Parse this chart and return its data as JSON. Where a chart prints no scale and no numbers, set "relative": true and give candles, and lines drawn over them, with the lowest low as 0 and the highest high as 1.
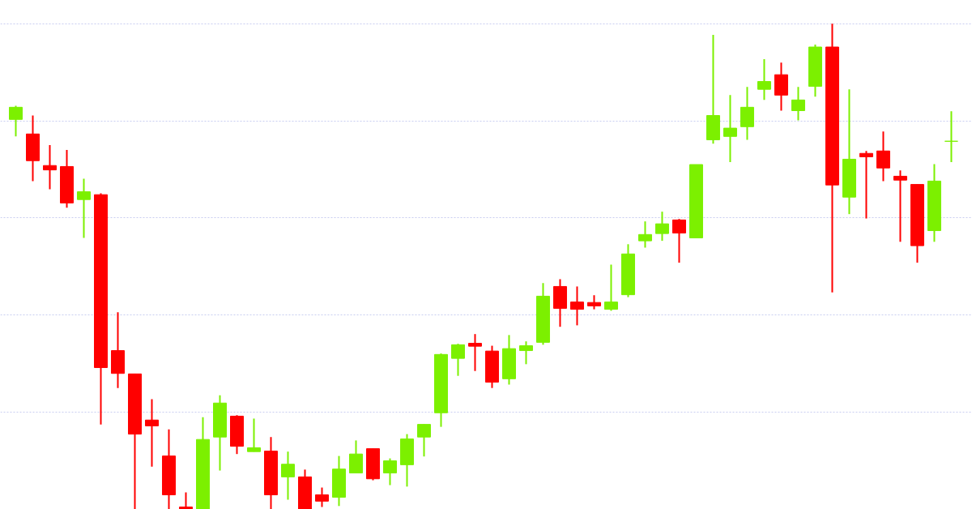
{
  "chart_data": {
    "type": "candlestick",
    "relative": true,
    "grid": "y",
    "tick_labels": false,
    "categories": [
      null,
      null,
      null,
      null,
      null,
      null,
      null,
      null,
      null,
      null,
      null,
      null,
      null,
      null,
      null,
      null,
      null,
      null,
      null,
      null,
      null,
      null,
      null,
      null,
      null,
      null,
      null,
      null,
      null,
      null,
      null,
      null,
      null,
      null,
      null,
      null,
      null,
      null,
      null,
      null,
      null,
      null,
      null,
      null,
      null,
      null,
      null,
      null,
      null,
      null,
      null,
      null,
      null,
      null,
      null,
      null
    ],
    "colors": [
      "#7cf000",
      "#ff0000",
      "#ff0000",
      "#ff0000",
      "#7cf000",
      "#ff0000",
      "#ff0000",
      "#ff0000",
      "#ff0000",
      "#ff0000",
      "#ff0000",
      "#7cf000",
      "#7cf000",
      "#ff0000",
      "#7cf000",
      "#ff0000",
      "#7cf000",
      "#ff0000",
      "#ff0000",
      "#7cf000",
      "#7cf000",
      "#ff0000",
      "#7cf000",
      "#7cf000",
      "#7cf000",
      "#7cf000",
      "#7cf000",
      "#ff0000",
      "#ff0000",
      "#7cf000",
      "#7cf000",
      "#7cf000",
      "#ff0000",
      "#ff0000",
      "#ff0000",
      "#7cf000",
      "#7cf000",
      "#7cf000",
      "#7cf000",
      "#ff0000",
      "#7cf000",
      "#7cf000",
      "#7cf000",
      "#7cf000",
      "#7cf000",
      "#ff0000",
      "#7cf000",
      "#7cf000",
      "#ff0000",
      "#7cf000",
      "#ff0000",
      "#ff0000",
      "#ff0000",
      "#ff0000",
      "#7cf000",
      "#7cf000"
    ],
    "ohlc": [
      [
        0.803,
        0.831,
        0.768,
        0.828
      ],
      [
        0.773,
        0.811,
        0.676,
        0.718
      ],
      [
        0.708,
        0.75,
        0.659,
        0.699
      ],
      [
        0.706,
        0.74,
        0.621,
        0.631
      ],
      [
        0.638,
        0.681,
        0.559,
        0.654
      ],
      [
        0.648,
        0.651,
        0.175,
        0.292
      ],
      [
        0.327,
        0.406,
        0.25,
        0.28
      ],
      [
        0.279,
        0.279,
        0,
        0.155
      ],
      [
        0.184,
        0.227,
        0.088,
        0.172
      ],
      [
        0.11,
        0.165,
        0,
        0.03
      ],
      [
        0.005,
        0.035,
        0,
        0
      ],
      [
        0,
        0.19,
        0,
        0.144
      ],
      [
        0.149,
        0.235,
        0.08,
        0.219
      ],
      [
        0.192,
        0.194,
        0.114,
        0.13
      ],
      [
        0.119,
        0.187,
        0.119,
        0.127
      ],
      [
        0.12,
        0.149,
        0,
        0.03
      ],
      [
        0.067,
        0.119,
        0.02,
        0.093
      ],
      [
        0.067,
        0.082,
        0,
        0
      ],
      [
        0.03,
        0.045,
        0.005,
        0.017
      ],
      [
        0.025,
        0.11,
        0.007,
        0.083
      ],
      [
        0.075,
        0.142,
        0.075,
        0.114
      ],
      [
        0.125,
        0.125,
        0.06,
        0.063
      ],
      [
        0.075,
        0.105,
        0.05,
        0.1
      ],
      [
        0.092,
        0.155,
        0.047,
        0.145
      ],
      [
        0.149,
        0.175,
        0.109,
        0.175
      ],
      [
        0.199,
        0.321,
        0.17,
        0.319
      ],
      [
        0.311,
        0.341,
        0.275,
        0.339
      ],
      [
        0.342,
        0.361,
        0.285,
        0.336
      ],
      [
        0.326,
        0.337,
        0.25,
        0.262
      ],
      [
        0.269,
        0.359,
        0.257,
        0.331
      ],
      [
        0.327,
        0.346,
        0.299,
        0.337
      ],
      [
        0.344,
        0.466,
        0.339,
        0.439
      ],
      [
        0.459,
        0.474,
        0.376,
        0.414
      ],
      [
        0.427,
        0.459,
        0.379,
        0.412
      ],
      [
        0.426,
        0.441,
        0.412,
        0.419
      ],
      [
        0.412,
        0.504,
        0.409,
        0.427
      ],
      [
        0.442,
        0.546,
        0.437,
        0.526
      ],
      [
        0.553,
        0.593,
        0.539,
        0.566
      ],
      [
        0.568,
        0.613,
        0.553,
        0.588
      ],
      [
        0.596,
        0.598,
        0.508,
        0.569
      ],
      [
        0.559,
        0.71,
        0.559,
        0.71
      ],
      [
        0.761,
        0.977,
        0.753,
        0.811
      ],
      [
        0.768,
        0.853,
        0.715,
        0.785
      ],
      [
        0.788,
        0.87,
        0.761,
        0.828
      ],
      [
        0.865,
        0.927,
        0.843,
        0.881
      ],
      [
        0.895,
        0.92,
        0.821,
        0.853
      ],
      [
        0.821,
        0.87,
        0.801,
        0.843
      ],
      [
        0.871,
        0.957,
        0.85,
        0.952
      ],
      [
        0.952,
        1,
        0.447,
        0.668
      ],
      [
        0.643,
        0.865,
        0.608,
        0.721
      ],
      [
        0.733,
        0.738,
        0.599,
        0.726
      ],
      [
        0.738,
        0.778,
        0.676,
        0.703
      ],
      [
        0.686,
        0.698,
        0.551,
        0.678
      ],
      [
        0.669,
        0.669,
        0.508,
        0.543
      ],
      [
        0.574,
        0.711,
        0.551,
        0.676
      ],
      [
        0.758,
        0.82,
        0.715,
        0.758
      ]
    ]
  }
}
